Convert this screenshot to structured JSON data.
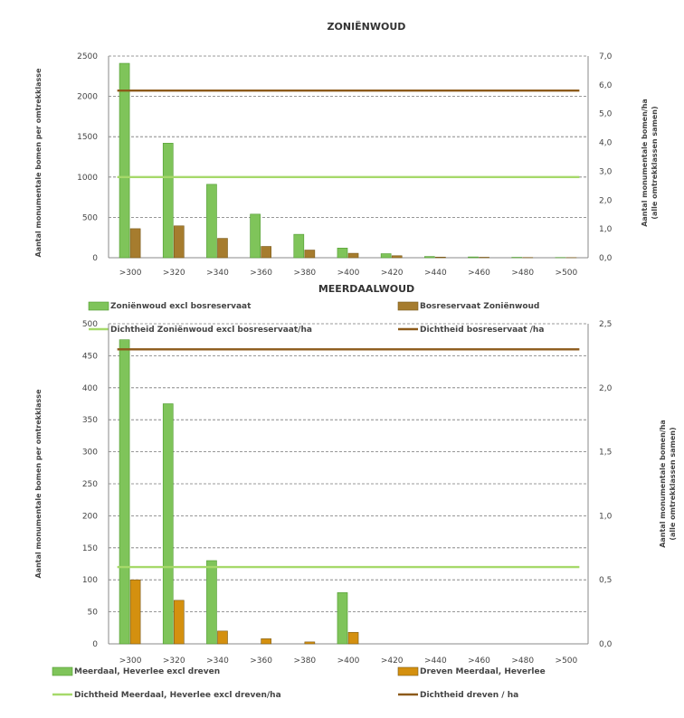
{
  "chart_data": [
    {
      "type": "bar",
      "title": "ZONIËNWOUD",
      "ylabel": "Aantal monumentale bomen per omtrekklasse",
      "y2label_line1": "Aantal monumentale bomen/ha",
      "y2label_line2": "(alle omtrekklassen samen)",
      "categories": [
        ">300",
        ">320",
        ">340",
        ">360",
        ">380",
        ">400",
        ">420",
        ">440",
        ">460",
        ">480",
        ">500"
      ],
      "ylim": [
        0,
        2500
      ],
      "yticks": [
        "0",
        "500",
        "1000",
        "1500",
        "2000",
        "2500"
      ],
      "y2lim": [
        0,
        7
      ],
      "y2ticks": [
        "0,0",
        "1,0",
        "2,0",
        "3,0",
        "4,0",
        "5,0",
        "6,0",
        "7,0"
      ],
      "grid": "dashed",
      "series": [
        {
          "name": "Zoniënwoud excl bosreservaat",
          "kind": "bar",
          "color": "#7fc45a",
          "values": [
            2410,
            1420,
            910,
            540,
            290,
            120,
            50,
            15,
            10,
            5,
            3
          ]
        },
        {
          "name": "Bosreservaat Zoniënwoud",
          "kind": "bar",
          "color": "#a67c2e",
          "values": [
            360,
            395,
            240,
            140,
            95,
            55,
            25,
            8,
            6,
            3,
            2
          ]
        },
        {
          "name": "Dichtheid Zoniënwoud excl bosreservaat/ha",
          "kind": "line",
          "axis": "right",
          "color": "#a6d96a",
          "value": 2.8
        },
        {
          "name": "Dichtheid bosreservaat /ha",
          "kind": "line",
          "axis": "right",
          "color": "#8c5a1a",
          "value": 5.8
        }
      ]
    },
    {
      "type": "bar",
      "title": "MEERDAALWOUD",
      "ylabel": "Aantal monumentale bomen per omtrekklasse",
      "y2label_line1": "Aantal monumentale bomen/ha",
      "y2label_line2": "(alle omtrekklassen samen)",
      "categories": [
        ">300",
        ">320",
        ">340",
        ">360",
        ">380",
        ">400",
        ">420",
        ">440",
        ">460",
        ">480",
        ">500"
      ],
      "ylim": [
        0,
        500
      ],
      "yticks": [
        "0",
        "50",
        "100",
        "150",
        "200",
        "250",
        "300",
        "350",
        "400",
        "450",
        "500"
      ],
      "y2lim": [
        0,
        2.5
      ],
      "y2ticks": [
        "0,0",
        "0,5",
        "1,0",
        "1,5",
        "2,0",
        "2,5"
      ],
      "grid": "dashed",
      "series": [
        {
          "name": "Meerdaal, Heverlee excl dreven",
          "kind": "bar",
          "color": "#7fc45a",
          "values": [
            475,
            375,
            130,
            0,
            0,
            80,
            0,
            0,
            0,
            0,
            0
          ]
        },
        {
          "name": "Dreven Meerdaal, Heverlee",
          "kind": "bar",
          "color": "#d4900f",
          "values": [
            100,
            68,
            20,
            8,
            3,
            18,
            0,
            0,
            0,
            0,
            0
          ]
        },
        {
          "name": "Dichtheid Meerdaal, Heverlee excl dreven/ha",
          "kind": "line",
          "axis": "right",
          "color": "#a6d96a",
          "value": 0.6
        },
        {
          "name": "Dichtheid dreven / ha",
          "kind": "line",
          "axis": "right",
          "color": "#8c5a1a",
          "value": 2.3
        }
      ]
    }
  ]
}
